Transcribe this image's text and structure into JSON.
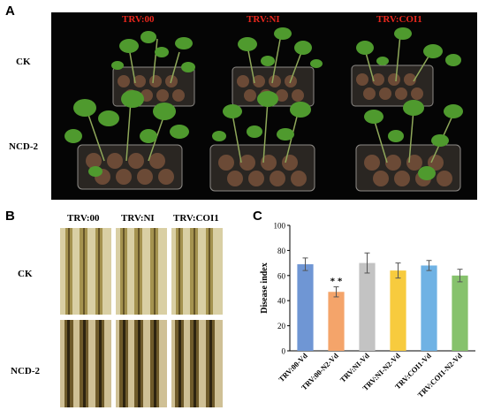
{
  "panels": {
    "a": {
      "letter": "A",
      "columns": [
        "TRV:00",
        "TRV:NI",
        "TRV:COI1"
      ],
      "rows": [
        "CK",
        "NCD-2"
      ]
    },
    "b": {
      "letter": "B",
      "columns": [
        "TRV:00",
        "TRV:NI",
        "TRV:COI1"
      ],
      "rows": [
        "CK",
        "NCD-2"
      ]
    },
    "c": {
      "letter": "C"
    }
  },
  "colors": {
    "photo_bg": "#050505",
    "soil": "#6b4a36",
    "leaf": "#4f9a2e",
    "stem_bg": "#c8b98a",
    "stem_dark": "#5a4a22"
  },
  "chart_data": {
    "type": "bar",
    "categories": [
      "TRV:00-Vd",
      "TRV:00-N2-Vd",
      "TRV:NI-Vd",
      "TRV:NI-N2-Vd",
      "TRV:COI1-Vd",
      "TRV:COI1-N2-Vd"
    ],
    "values": [
      69,
      47,
      70,
      64,
      68,
      60
    ],
    "errors": [
      5,
      4,
      8,
      6,
      4,
      5
    ],
    "bar_colors": [
      "#6f96d4",
      "#f4a46a",
      "#c3c3c3",
      "#f7cb3e",
      "#6fb2e4",
      "#86c26c"
    ],
    "annotations": [
      {
        "category": "TRV:00-N2-Vd",
        "text": "* *"
      }
    ],
    "ylabel": "Disease index",
    "xlabel": "",
    "ylim": [
      0,
      100
    ],
    "yticks": [
      0,
      20,
      40,
      60,
      80,
      100
    ],
    "grid": false
  }
}
